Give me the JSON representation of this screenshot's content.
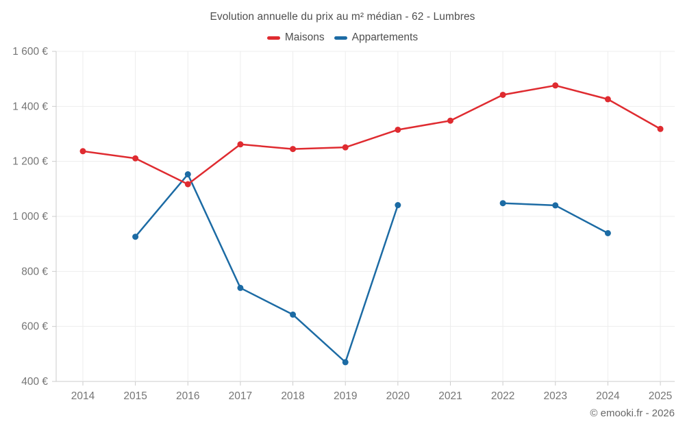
{
  "title": "Evolution annuelle du prix au m² médian - 62 - Lumbres",
  "footer": "© emooki.fr - 2026",
  "colors": {
    "maisons": "#df2b30",
    "appartements": "#1c6ba4",
    "grid": "#ededed",
    "axis": "#cbcbcb",
    "axis_label": "#757575",
    "background": "#ffffff"
  },
  "legend": {
    "items": [
      {
        "label": "Maisons",
        "color": "#df2b30"
      },
      {
        "label": "Appartements",
        "color": "#1c6ba4"
      }
    ]
  },
  "chart_data": {
    "type": "line",
    "title": "Evolution annuelle du prix au m² médian - 62 - Lumbres",
    "x": [
      2014,
      2015,
      2016,
      2017,
      2018,
      2019,
      2020,
      2021,
      2022,
      2023,
      2024,
      2025
    ],
    "series": [
      {
        "name": "Maisons",
        "color": "#df2b30",
        "values": [
          1237,
          1211,
          1117,
          1262,
          1245,
          1251,
          1315,
          1348,
          1442,
          1476,
          1426,
          1318
        ]
      },
      {
        "name": "Appartements",
        "color": "#1c6ba4",
        "values": [
          null,
          926,
          1153,
          740,
          643,
          470,
          1041,
          null,
          1048,
          1040,
          939,
          null
        ]
      }
    ],
    "xlabel": "",
    "ylabel": "",
    "ylim": [
      400,
      1600
    ],
    "ytick_step": 200,
    "yticks": [
      400,
      600,
      800,
      1000,
      1200,
      1400,
      1600
    ],
    "ytick_labels": [
      "400 €",
      "600 €",
      "800 €",
      "1 000 €",
      "1 200 €",
      "1 400 €",
      "1 600 €"
    ],
    "grid": true,
    "legend_position": "top",
    "marker_radius": 4.5,
    "line_width": 2.5
  }
}
